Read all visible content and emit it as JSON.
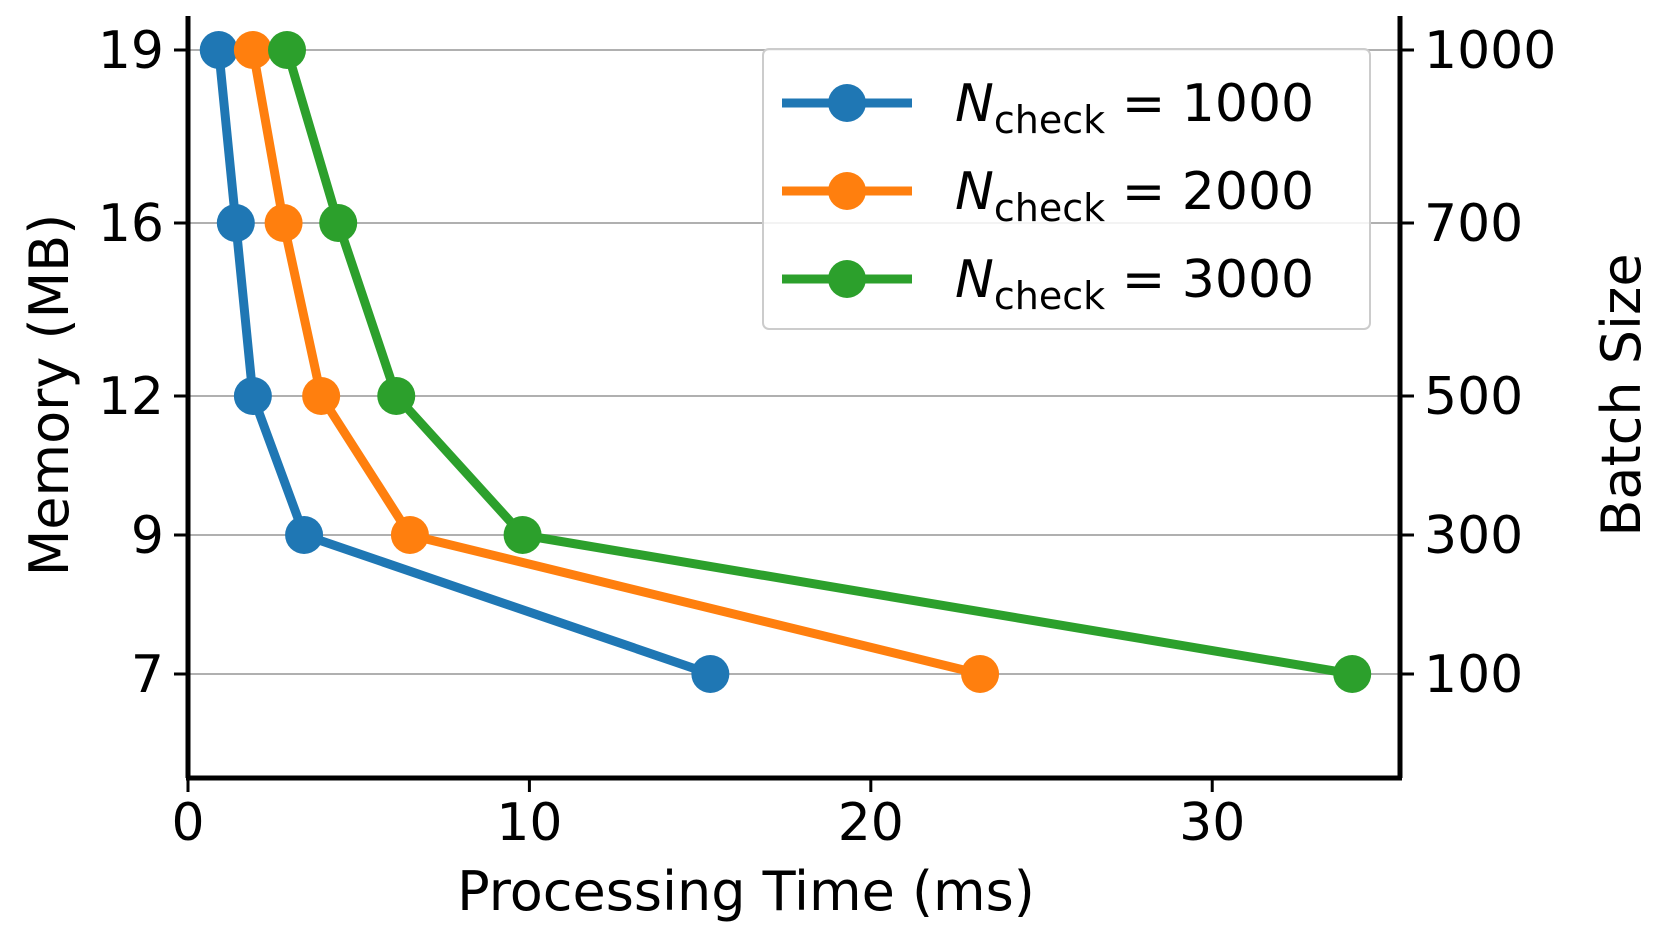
{
  "chart_data": {
    "type": "line",
    "xlabel": "Processing Time (ms)",
    "ylabel": "Memory (MB)",
    "y2label": "Batch Size",
    "xlim": [
      0,
      35.5
    ],
    "x_ticks": [
      "0",
      "10",
      "20",
      "30"
    ],
    "y_ticks_left": [
      "19",
      "16",
      "12",
      "9",
      "7"
    ],
    "y_ticks_right": [
      "1000",
      "700",
      "500",
      "300",
      "100"
    ],
    "grid": "horizontal",
    "legend_position": "top-right",
    "series": [
      {
        "name_var": "N",
        "name_sub": "check",
        "name_rest": " = 1000",
        "color": "#1f77b4",
        "x": [
          0.9,
          1.4,
          1.9,
          3.4,
          15.3
        ],
        "y": [
          19,
          16,
          12,
          9,
          7
        ]
      },
      {
        "name_var": "N",
        "name_sub": "check",
        "name_rest": " = 2000",
        "color": "#ff7f0e",
        "x": [
          1.9,
          2.8,
          3.9,
          6.5,
          23.2
        ],
        "y": [
          19,
          16,
          12,
          9,
          7
        ]
      },
      {
        "name_var": "N",
        "name_sub": "check",
        "name_rest": " = 3000",
        "color": "#2ca02c",
        "x": [
          2.9,
          4.4,
          6.1,
          9.8,
          34.1
        ],
        "y": [
          19,
          16,
          12,
          9,
          7
        ]
      }
    ]
  }
}
